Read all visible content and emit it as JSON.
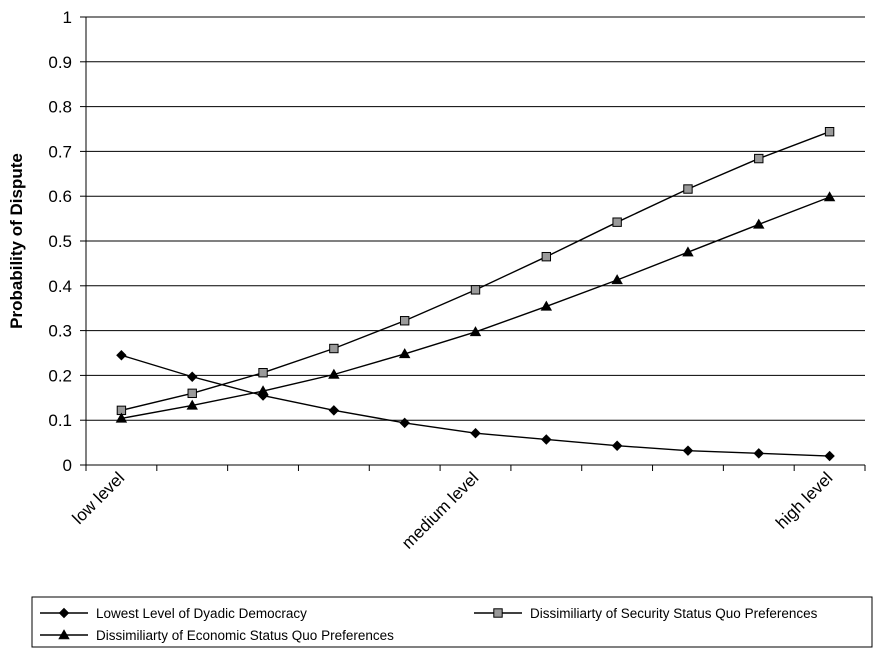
{
  "chart_data": {
    "type": "line",
    "ylabel": "Probability of Dispute",
    "ylim": [
      0,
      1
    ],
    "yticks": [
      "0",
      "0.1",
      "0.2",
      "0.3",
      "0.4",
      "0.5",
      "0.6",
      "0.7",
      "0.8",
      "0.9",
      "1"
    ],
    "x_tick_labels": [
      {
        "text": "low level",
        "index": 0
      },
      {
        "text": "medium level",
        "index": 5
      },
      {
        "text": "high level",
        "index": 10
      }
    ],
    "categories_count": 11,
    "grid": "horizontal",
    "legend_position": "bottom",
    "series": [
      {
        "name": "Lowest Level of Dyadic Democracy",
        "marker": "diamond",
        "values": [
          0.245,
          0.197,
          0.155,
          0.122,
          0.094,
          0.071,
          0.057,
          0.043,
          0.032,
          0.026,
          0.02
        ]
      },
      {
        "name": "Dissimiliarty of Security Status Quo Preferences",
        "marker": "square",
        "values": [
          0.122,
          0.16,
          0.206,
          0.26,
          0.322,
          0.391,
          0.465,
          0.542,
          0.616,
          0.684,
          0.744
        ]
      },
      {
        "name": "Dissimiliarty of Economic Status Quo Preferences",
        "marker": "triangle",
        "values": [
          0.104,
          0.133,
          0.165,
          0.202,
          0.248,
          0.297,
          0.354,
          0.413,
          0.475,
          0.537,
          0.598
        ]
      }
    ],
    "colors": {
      "line": "#000000",
      "grid": "#000000",
      "square_fill": "#9a9a9a",
      "marker_fill": "#000000"
    }
  }
}
